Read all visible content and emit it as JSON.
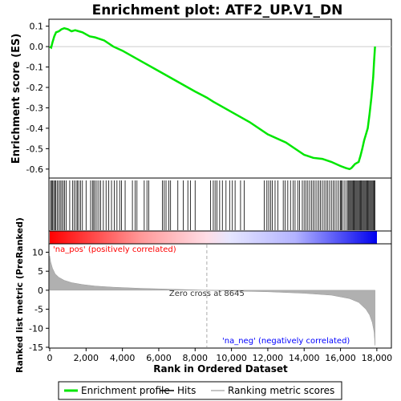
{
  "chart_data": {
    "type": "line",
    "title": "Enrichment plot: ATF2_UP.V1_DN",
    "xlabel": "Rank in Ordered Dataset",
    "x_ticks": [
      0,
      2000,
      4000,
      6000,
      8000,
      10000,
      12000,
      14000,
      16000,
      18000
    ],
    "x_tick_labels": [
      "0",
      "2,000",
      "4,000",
      "6,000",
      "8,000",
      "10,000",
      "12,000",
      "14,000",
      "16,000",
      "18,000"
    ],
    "xlim": [
      0,
      18800
    ],
    "n_genes": 17900,
    "es_panel": {
      "ylabel": "Enrichment score (ES)",
      "ylim": [
        -0.64,
        0.13
      ],
      "y_ticks": [
        0.1,
        0.0,
        -0.1,
        -0.2,
        -0.3,
        -0.4,
        -0.5,
        -0.6
      ],
      "y_tick_labels": [
        "0.1",
        "0.0",
        "-0.1",
        "-0.2",
        "-0.3",
        "-0.4",
        "-0.5",
        "-0.6"
      ],
      "series": {
        "name": "Enrichment profile",
        "color": "#00e600",
        "x": [
          0,
          80,
          150,
          250,
          350,
          500,
          650,
          800,
          1000,
          1200,
          1400,
          1600,
          1800,
          2000,
          2200,
          2500,
          3000,
          3500,
          4000,
          5000,
          6000,
          7000,
          8000,
          8645,
          9000,
          10000,
          11000,
          12000,
          13000,
          13500,
          14000,
          14500,
          15000,
          15500,
          16000,
          16300,
          16500,
          16600,
          16700,
          16800,
          16900,
          17000,
          17100,
          17200,
          17300,
          17400,
          17500,
          17600,
          17700,
          17800,
          17850,
          17900
        ],
        "y": [
          0.0,
          -0.005,
          0.02,
          0.05,
          0.07,
          0.075,
          0.085,
          0.09,
          0.085,
          0.075,
          0.08,
          0.075,
          0.07,
          0.06,
          0.05,
          0.045,
          0.03,
          0.0,
          -0.02,
          -0.07,
          -0.12,
          -0.17,
          -0.22,
          -0.25,
          -0.27,
          -0.32,
          -0.37,
          -0.43,
          -0.47,
          -0.5,
          -0.53,
          -0.545,
          -0.55,
          -0.565,
          -0.585,
          -0.595,
          -0.6,
          -0.595,
          -0.585,
          -0.575,
          -0.57,
          -0.565,
          -0.535,
          -0.5,
          -0.46,
          -0.43,
          -0.4,
          -0.33,
          -0.25,
          -0.15,
          -0.07,
          0.0
        ]
      }
    },
    "hits_panel": {
      "series_name": "Hits",
      "hit_ranks": [
        50,
        100,
        160,
        220,
        280,
        340,
        420,
        500,
        580,
        660,
        740,
        820,
        900,
        1100,
        1250,
        1350,
        1450,
        1520,
        1600,
        1700,
        1800,
        2000,
        2250,
        2350,
        2420,
        2500,
        2600,
        2700,
        2800,
        2950,
        3100,
        3250,
        3400,
        3550,
        3700,
        3850,
        3950,
        4150,
        4550,
        4700,
        4800,
        5200,
        5350,
        5450,
        6200,
        6300,
        6400,
        6550,
        6650,
        7050,
        7350,
        7600,
        7750,
        8000,
        8850,
        9000,
        9100,
        9200,
        9350,
        9500,
        9700,
        9900,
        10050,
        10200,
        10500,
        10700,
        11800,
        11950,
        12050,
        12150,
        12250,
        12400,
        12550,
        12850,
        12950,
        13100,
        13250,
        13400,
        13500,
        13650,
        13750,
        13900,
        14000,
        14100,
        14200,
        14300,
        14400,
        14500,
        14600,
        14700,
        14800,
        14900,
        15000,
        15100,
        15200,
        15300,
        15400,
        15500,
        15600,
        15700,
        15800,
        15900,
        16000,
        16050,
        16100,
        16200,
        16300,
        16400,
        16450,
        16500,
        16550,
        16600,
        16650,
        16700,
        16750,
        16800,
        16850,
        16900,
        16950,
        17000,
        17050,
        17100,
        17150,
        17200,
        17250,
        17300,
        17350,
        17400,
        17450,
        17500,
        17550,
        17600,
        17650,
        17700,
        17750,
        17800,
        17850,
        17900
      ]
    },
    "metric_panel": {
      "ylabel": "Ranked list metric (PreRanked)",
      "ylim": [
        -15,
        12
      ],
      "y_ticks": [
        10,
        5,
        0,
        -5,
        -10,
        -15
      ],
      "y_tick_labels": [
        "10",
        "5",
        "0",
        "-5",
        "-10",
        "-15"
      ],
      "series_name": "Ranking metric scores",
      "color": "#b0b0b0",
      "x": [
        0,
        50,
        150,
        300,
        500,
        800,
        1200,
        1800,
        2500,
        3500,
        5000,
        6500,
        8000,
        8645,
        10000,
        12000,
        14000,
        15500,
        16500,
        17000,
        17400,
        17600,
        17750,
        17850,
        17900
      ],
      "y": [
        9.0,
        7.5,
        5.8,
        4.3,
        3.4,
        2.6,
        2.0,
        1.5,
        1.1,
        0.8,
        0.5,
        0.3,
        0.1,
        0.0,
        -0.2,
        -0.4,
        -0.8,
        -1.3,
        -2.2,
        -3.2,
        -5.0,
        -6.5,
        -8.5,
        -11.0,
        -14.5
      ],
      "zero_cross_label": "Zero cross at 8645",
      "zero_cross": 8645,
      "pos_label": "'na_pos' (positively correlated)",
      "neg_label": "'na_neg' (negatively correlated)",
      "pos_color": "#ff0000",
      "neg_color": "#0000ff"
    },
    "legend": {
      "placement": "bottom",
      "items": [
        {
          "label": "Enrichment profile",
          "color": "#00e600",
          "kind": "thick-line"
        },
        {
          "label": "Hits",
          "color": "#000000",
          "kind": "line"
        },
        {
          "label": "Ranking metric scores",
          "color": "#b0b0b0",
          "kind": "line"
        }
      ]
    }
  }
}
